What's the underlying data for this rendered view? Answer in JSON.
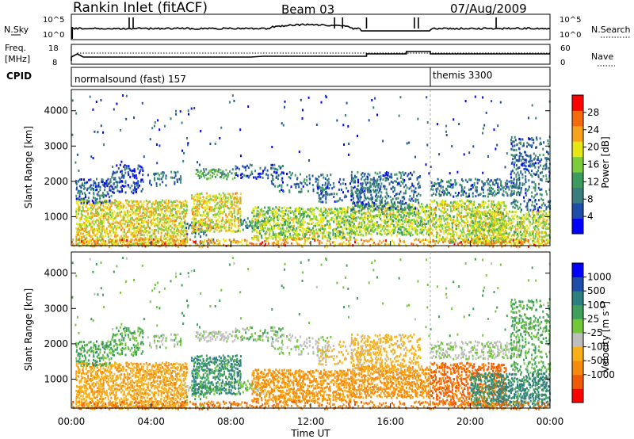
{
  "header": {
    "site": "Rankin Inlet (fitACF)",
    "beam": "Beam 03",
    "date": "07/Aug/2009"
  },
  "top_panel": {
    "left_label": "N.Sky",
    "left_ticks": [
      "10^5",
      "10^0"
    ],
    "right_ticks": [
      "10^5",
      "10^0"
    ],
    "right_label": "N.Search"
  },
  "freq_panel": {
    "left_label_1": "Freq.",
    "left_label_2": "[MHz]",
    "left_ticks": [
      "18",
      "8"
    ],
    "right_ticks": [
      "60",
      "0"
    ],
    "right_label": "Nave"
  },
  "cpid": {
    "label": "CPID",
    "segments": [
      {
        "name": "normalsound (fast) 157",
        "start_hour": 0
      },
      {
        "name": "themis 3300",
        "start_hour": 18
      }
    ]
  },
  "chart_data": [
    {
      "type": "heatmap",
      "xlabel": "Time UT",
      "ylabel": "Slant Range [km]",
      "x_range_hours": [
        0,
        24
      ],
      "xticks": [
        "00:00",
        "04:00",
        "08:00",
        "12:00",
        "16:00",
        "20:00",
        "00:00"
      ],
      "ylim_km": [
        180,
        4600
      ],
      "yticks": [
        "1000",
        "2000",
        "3000",
        "4000"
      ],
      "colorbar": {
        "label": "Power [dB]",
        "ticks": [
          "4",
          "8",
          "12",
          "16",
          "20",
          "24",
          "28"
        ],
        "range": [
          0,
          32
        ],
        "colors": [
          "#0000ff",
          "#1e4ea8",
          "#3a7e7e",
          "#3e9b5e",
          "#7ccc3c",
          "#e6e614",
          "#f7a21c",
          "#f56a0c",
          "#ff0000"
        ]
      }
    },
    {
      "type": "heatmap",
      "xlabel": "Time UT",
      "ylabel": "Slant Range [km]",
      "x_range_hours": [
        0,
        24
      ],
      "xticks": [
        "00:00",
        "04:00",
        "08:00",
        "12:00",
        "16:00",
        "20:00",
        "00:00"
      ],
      "ylim_km": [
        180,
        4600
      ],
      "yticks": [
        "1000",
        "2000",
        "3000",
        "4000"
      ],
      "colorbar": {
        "label": "Velocity [m s^-1]",
        "ticks": [
          "1000",
          "500",
          "100",
          "25",
          "-25",
          "-100",
          "-500",
          "-1000"
        ],
        "colors": [
          "#0000ff",
          "#1e4ea8",
          "#2e7f7f",
          "#3ea05a",
          "#73c83a",
          "#bebebe",
          "#f7b018",
          "#f58a0c",
          "#f05a05",
          "#ff0000"
        ]
      }
    }
  ],
  "scatter_regions": [
    {
      "t0": 0.2,
      "t1": 5.8,
      "r0": 200,
      "r1": 1500,
      "d": 0.75,
      "p": 20,
      "v": -80
    },
    {
      "t0": 0.2,
      "t1": 2.0,
      "r0": 1400,
      "r1": 2100,
      "d": 0.55,
      "p": 7,
      "v": 70
    },
    {
      "t0": 2.0,
      "t1": 3.6,
      "r0": 1700,
      "r1": 2500,
      "d": 0.45,
      "p": 6,
      "v": 60
    },
    {
      "t0": 3.8,
      "t1": 5.5,
      "r0": 1900,
      "r1": 2300,
      "d": 0.3,
      "p": 9,
      "v": 30
    },
    {
      "t0": 5.6,
      "t1": 7.2,
      "r0": 200,
      "r1": 900,
      "d": 0.3,
      "p": 9,
      "v": 40
    },
    {
      "t0": 6.0,
      "t1": 8.5,
      "r0": 600,
      "r1": 1700,
      "d": 0.7,
      "p": 20,
      "v": 100
    },
    {
      "t0": 6.2,
      "t1": 8.2,
      "r0": 2100,
      "r1": 2400,
      "d": 0.65,
      "p": 13,
      "v": 10
    },
    {
      "t0": 8.3,
      "t1": 9.8,
      "r0": 600,
      "r1": 1000,
      "d": 0.35,
      "p": 10,
      "v": 30
    },
    {
      "t0": 8.2,
      "t1": 10.6,
      "r0": 2100,
      "r1": 2500,
      "d": 0.35,
      "p": 6,
      "v": 40
    },
    {
      "t0": 9.0,
      "t1": 14.2,
      "r0": 400,
      "r1": 1300,
      "d": 0.75,
      "p": 17,
      "v": -120
    },
    {
      "t0": 10.0,
      "t1": 13.0,
      "r0": 1700,
      "r1": 2300,
      "d": 0.25,
      "p": 8,
      "v": 20
    },
    {
      "t0": 12.3,
      "t1": 15.5,
      "r0": 1400,
      "r1": 2100,
      "d": 0.35,
      "p": 7,
      "v": -30
    },
    {
      "t0": 14.0,
      "t1": 18.0,
      "r0": 500,
      "r1": 1400,
      "d": 0.7,
      "p": 17,
      "v": -150
    },
    {
      "t0": 14.0,
      "t1": 17.5,
      "r0": 1200,
      "r1": 2300,
      "d": 0.4,
      "p": 8,
      "v": -50
    },
    {
      "t0": 18.0,
      "t1": 21.8,
      "r0": 300,
      "r1": 1500,
      "d": 0.6,
      "p": 18,
      "v": -300
    },
    {
      "t0": 18.0,
      "t1": 22.5,
      "r0": 1600,
      "r1": 2100,
      "d": 0.5,
      "p": 8,
      "v": 15
    },
    {
      "t0": 20.0,
      "t1": 24.0,
      "r0": 250,
      "r1": 1200,
      "d": 0.7,
      "p": 18,
      "v": 120
    },
    {
      "t0": 22.0,
      "t1": 24.0,
      "r0": 1200,
      "r1": 3300,
      "d": 0.35,
      "p": 8,
      "v": 60
    },
    {
      "t0": 0.0,
      "t1": 24.0,
      "r0": 180,
      "r1": 400,
      "d": 0.45,
      "p": 24,
      "v": -200
    },
    {
      "t0": 0.0,
      "t1": 24.0,
      "r0": 2200,
      "r1": 4500,
      "d": 0.015,
      "p": 5,
      "v": 50
    }
  ]
}
